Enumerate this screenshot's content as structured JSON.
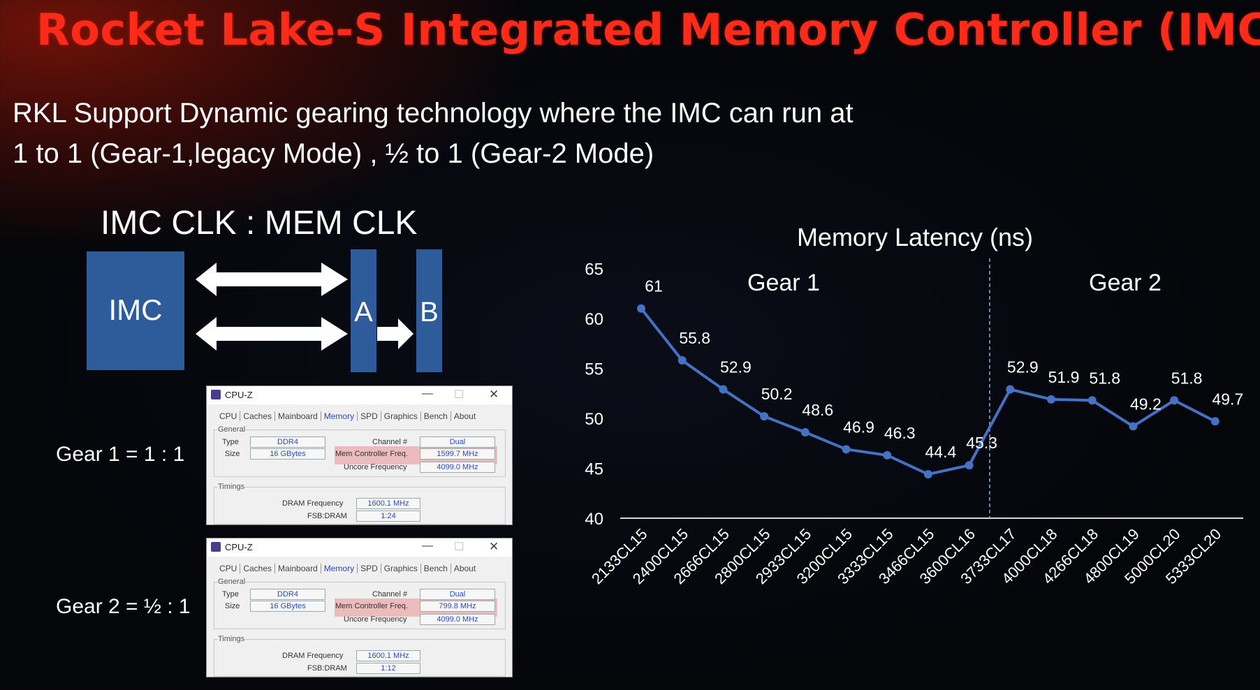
{
  "slide": {
    "title": "Rocket Lake-S Integrated Memory Controller (IMC)",
    "subtitle_line1": "RKL Support Dynamic gearing technology where the IMC can run at",
    "subtitle_line2": "1 to 1 (Gear-1,legacy Mode) , ½  to 1 (Gear-2 Mode)"
  },
  "diagram": {
    "ratio_label": "IMC CLK : MEM CLK",
    "imc_label": "IMC",
    "bar_a_label": "A",
    "bar_b_label": "B",
    "block_color": "#2e5c9a"
  },
  "gears": [
    {
      "label": "Gear 1 = 1 : 1"
    },
    {
      "label": "Gear 2 = ½ : 1"
    }
  ],
  "cpuz": [
    {
      "app_title": "CPU-Z",
      "tabs": [
        "CPU",
        "Caches",
        "Mainboard",
        "Memory",
        "SPD",
        "Graphics",
        "Bench",
        "About"
      ],
      "active_tab": "Memory",
      "general_label": "General",
      "type_label": "Type",
      "type_value": "DDR4",
      "size_label": "Size",
      "size_value": "16 GBytes",
      "channel_label": "Channel #",
      "channel_value": "Dual",
      "mcf_label": "Mem Controller Freq.",
      "mcf_value": "1599.7 MHz",
      "uncore_label": "Uncore Frequency",
      "uncore_value": "4099.0 MHz",
      "timings_label": "Timings",
      "dram_label": "DRAM Frequency",
      "dram_value": "1600.1 MHz",
      "fsb_label": "FSB:DRAM",
      "fsb_value": "1:24"
    },
    {
      "app_title": "CPU-Z",
      "tabs": [
        "CPU",
        "Caches",
        "Mainboard",
        "Memory",
        "SPD",
        "Graphics",
        "Bench",
        "About"
      ],
      "active_tab": "Memory",
      "general_label": "General",
      "type_label": "Type",
      "type_value": "DDR4",
      "size_label": "Size",
      "size_value": "16 GBytes",
      "channel_label": "Channel #",
      "channel_value": "Dual",
      "mcf_label": "Mem Controller Freq.",
      "mcf_value": "799.8 MHz",
      "uncore_label": "Uncore Frequency",
      "uncore_value": "4099.0 MHz",
      "timings_label": "Timings",
      "dram_label": "DRAM Frequency",
      "dram_value": "1600.1 MHz",
      "fsb_label": "FSB:DRAM",
      "fsb_value": "1:12"
    }
  ],
  "chart_data": {
    "type": "line",
    "title": "Memory Latency (ns)",
    "categories": [
      "2133CL15",
      "2400CL15",
      "2666CL15",
      "2800CL15",
      "2933CL15",
      "3200CL15",
      "3333CL15",
      "3466CL15",
      "3600CL16",
      "3733CL17",
      "4000CL18",
      "4266CL18",
      "4800CL19",
      "5000CL20",
      "5333CL20"
    ],
    "values": [
      61,
      55.8,
      52.9,
      50.2,
      48.6,
      46.9,
      46.3,
      44.4,
      45.3,
      52.9,
      51.9,
      51.8,
      49.2,
      51.8,
      49.7
    ],
    "ylim": [
      40,
      65
    ],
    "yticks": [
      40,
      45,
      50,
      55,
      60,
      65
    ],
    "regions": [
      {
        "label": "Gear 1"
      },
      {
        "label": "Gear 2"
      }
    ],
    "line_color": "#4472c4",
    "grid": false
  }
}
